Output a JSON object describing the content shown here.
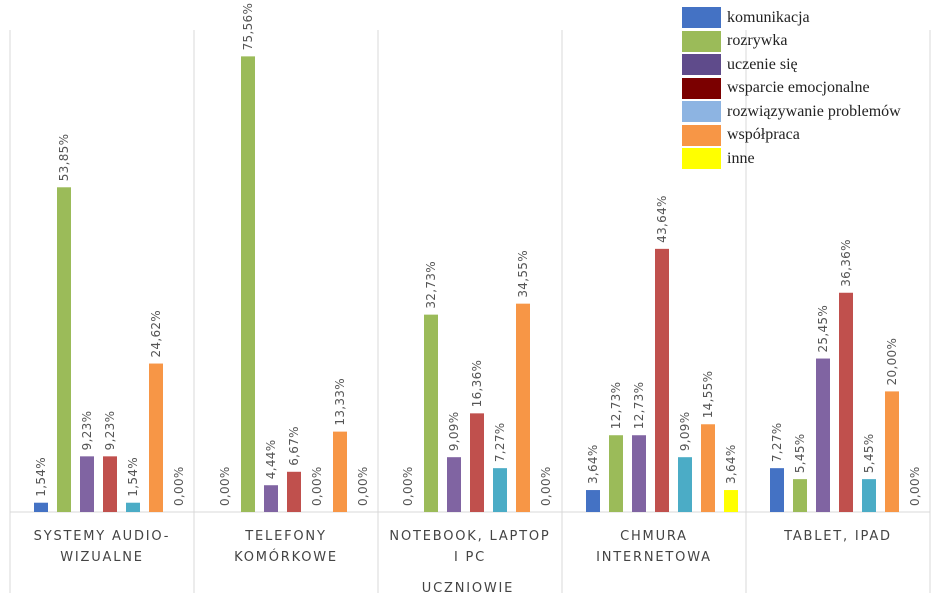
{
  "chart_data": {
    "type": "bar",
    "xlabel": "UCZNIOWIE",
    "ylim": [
      0,
      80
    ],
    "grid": false,
    "legend_position": "top-right",
    "categories": [
      [
        "SYSTEMY AUDIO-",
        "WIZUALNE"
      ],
      [
        "TELEFONY",
        "KOMÓRKOWE"
      ],
      [
        "NOTEBOOK, LAPTOP",
        "I PC"
      ],
      [
        "CHMURA",
        "INTERNETOWA"
      ],
      [
        "TABLET, IPAD"
      ]
    ],
    "series": [
      {
        "name": "komunikacja",
        "color": "#4472C4",
        "values": [
          1.54,
          0,
          0,
          3.64,
          7.27
        ],
        "labels": [
          "1,54%",
          "",
          "",
          "3,64%",
          "7,27%"
        ]
      },
      {
        "name": "rozrywka",
        "color": "#9BBB59",
        "values": [
          53.85,
          75.56,
          32.73,
          12.73,
          5.45
        ],
        "labels": [
          "53,85%",
          "75,56%",
          "32,73%",
          "12,73%",
          "5,45%"
        ]
      },
      {
        "name": "uczenie się",
        "color": "#8064A2",
        "values": [
          9.23,
          4.44,
          9.09,
          12.73,
          25.45
        ],
        "labels": [
          "9,23%",
          "4,44%",
          "9,09%",
          "12,73%",
          "25,45%"
        ]
      },
      {
        "name": "wsparcie emocjonalne",
        "color": "#C0504D",
        "values": [
          9.23,
          6.67,
          16.36,
          43.64,
          36.36
        ],
        "labels": [
          "9,23%",
          "6,67%",
          "16,36%",
          "43,64%",
          "36,36%"
        ]
      },
      {
        "name": "rozwiązywanie problemów",
        "color": "#4BACC6",
        "values": [
          1.54,
          0,
          7.27,
          9.09,
          5.45
        ],
        "labels": [
          "1,54%",
          "0,00%",
          "7,27%",
          "9,09%",
          "5,45%"
        ]
      },
      {
        "name": "współpraca",
        "color": "#F79646",
        "values": [
          24.62,
          13.33,
          34.55,
          14.55,
          20.0
        ],
        "labels": [
          "24,62%",
          "13,33%",
          "34,55%",
          "14,55%",
          "20,00%"
        ]
      },
      {
        "name": "inne",
        "color": "#FFFF00",
        "values": [
          0,
          0,
          0,
          3.64,
          0
        ],
        "labels": [
          "0,00%",
          "0,00%",
          "0,00%",
          "3,64%",
          "0,00%"
        ]
      }
    ],
    "zero_labels": [
      [],
      [
        "0,00%"
      ],
      [
        "0,00%"
      ],
      [],
      []
    ]
  },
  "legend": {
    "items": [
      {
        "label": "komunikacja",
        "color": "#4472C4"
      },
      {
        "label": "rozrywka",
        "color": "#9BBB59"
      },
      {
        "label": "uczenie się",
        "color": "#5F4B8B"
      },
      {
        "label": "wsparcie emocjonalne",
        "color": "#7B0000"
      },
      {
        "label": "rozwiązywanie problemów",
        "color": "#8DB4E2"
      },
      {
        "label": "współpraca",
        "color": "#F79646"
      },
      {
        "label": "inne",
        "color": "#FFFF00"
      }
    ]
  }
}
